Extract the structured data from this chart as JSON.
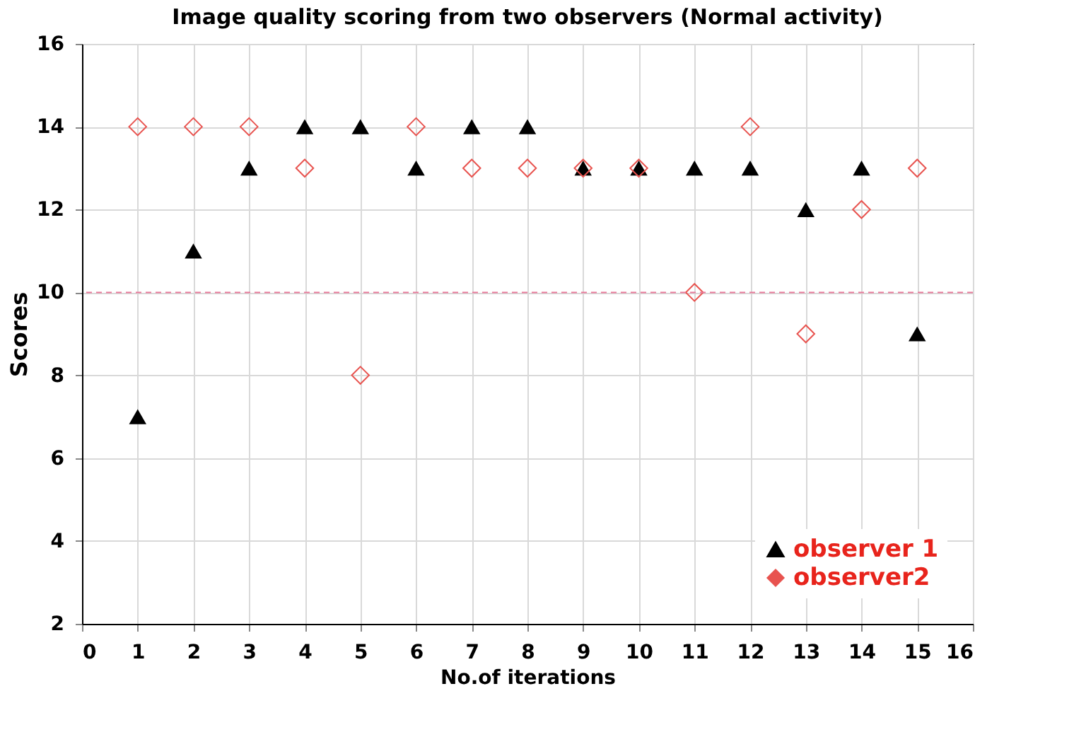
{
  "chart_data": {
    "type": "scatter",
    "title": "Image quality scoring from two observers (Normal activity)",
    "xlabel": "No.of iterations",
    "ylabel": "Scores",
    "x": [
      1,
      2,
      3,
      4,
      5,
      6,
      7,
      8,
      9,
      10,
      11,
      12,
      13,
      14,
      15
    ],
    "series": [
      {
        "name": "observer 1",
        "color": "#000000",
        "marker": "triangle",
        "values": [
          7,
          11,
          13,
          14,
          14,
          13,
          14,
          14,
          13,
          13,
          13,
          13,
          12,
          13,
          9
        ]
      },
      {
        "name": "observer2",
        "color": "#e8534f",
        "marker": "diamond",
        "values": [
          14,
          14,
          14,
          13,
          8,
          14,
          13,
          13,
          13,
          13,
          10,
          14,
          9,
          12,
          13
        ]
      }
    ],
    "xlim": [
      0,
      16
    ],
    "xticks": [
      0,
      1,
      2,
      3,
      4,
      5,
      6,
      7,
      8,
      9,
      10,
      11,
      12,
      13,
      14,
      15,
      16
    ],
    "ylim": [
      2,
      16
    ],
    "yticks": [
      2,
      4,
      6,
      8,
      10,
      12,
      14,
      16
    ],
    "ref_lines": [
      {
        "axis": "y",
        "value": 10,
        "color": "#e87a9a",
        "line_style": "dashed"
      }
    ],
    "grid": true,
    "legend": "bottom right"
  }
}
